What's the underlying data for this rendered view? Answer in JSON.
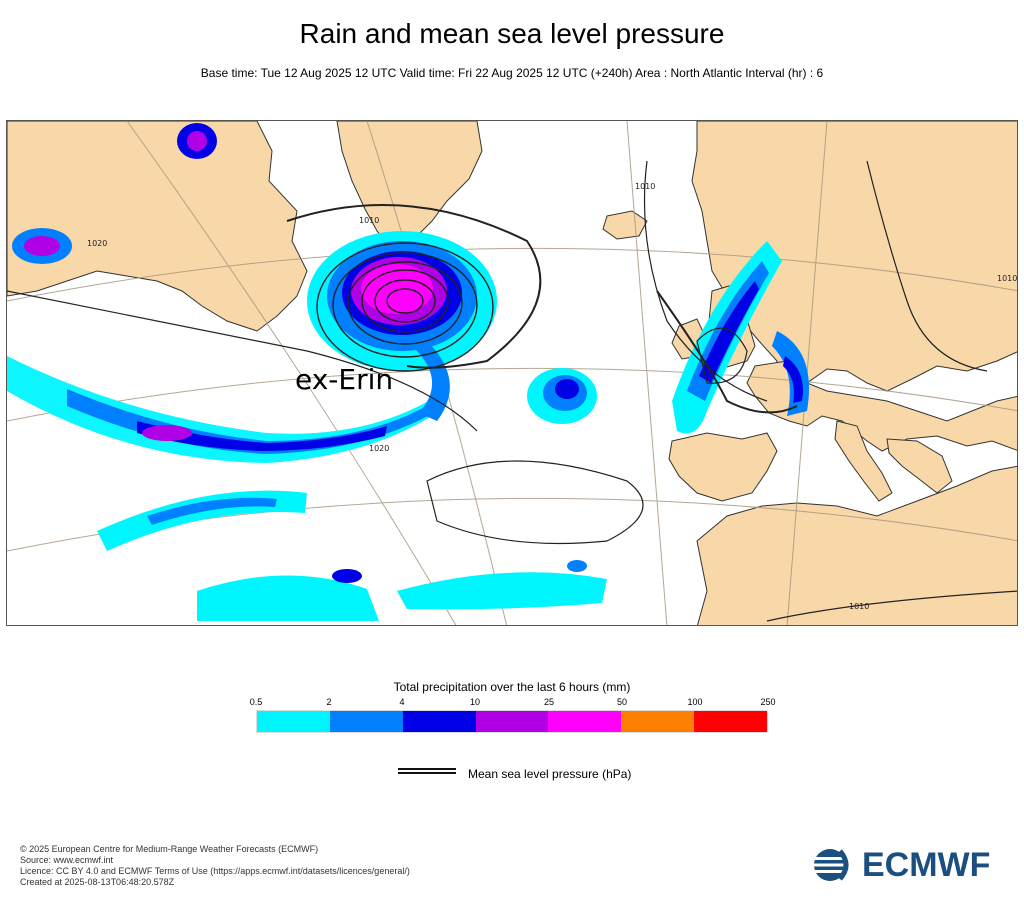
{
  "title": "Rain and mean sea level pressure",
  "subtitle": "Base time: Tue 12 Aug 2025 12 UTC Valid time: Fri 22 Aug 2025 12 UTC (+240h) Area : North Atlantic Interval (hr) : 6",
  "map": {
    "annotation": "ex-Erin",
    "isobar_labels": [
      "1020",
      "1010",
      "1020",
      "1010",
      "1010",
      "1010"
    ],
    "colors": {
      "land": "#f8d8a8",
      "sea": "#ffffff",
      "coast": "#333333",
      "graticule": "#a89880",
      "isobar": "#222222"
    }
  },
  "legend": {
    "title": "Total precipitation over the last 6 hours (mm)",
    "ticks": [
      "0.5",
      "2",
      "4",
      "10",
      "25",
      "50",
      "100",
      "250"
    ],
    "colors": [
      "#00f6ff",
      "#0080ff",
      "#0000e6",
      "#b000e6",
      "#ff00ff",
      "#ff8000",
      "#ff0000"
    ],
    "mslp_label": "Mean sea level pressure (hPa)"
  },
  "footer": {
    "line1": "© 2025 European Centre for Medium-Range Weather Forecasts (ECMWF)",
    "line2": "Source: www.ecmwf.int",
    "line3": "Licence: CC BY 4.0 and ECMWF Terms of Use (https://apps.ecmwf.int/datasets/licences/general/)",
    "line4": "Created at 2025-08-13T06:48:20.578Z"
  },
  "logo": {
    "text": "ECMWF"
  }
}
